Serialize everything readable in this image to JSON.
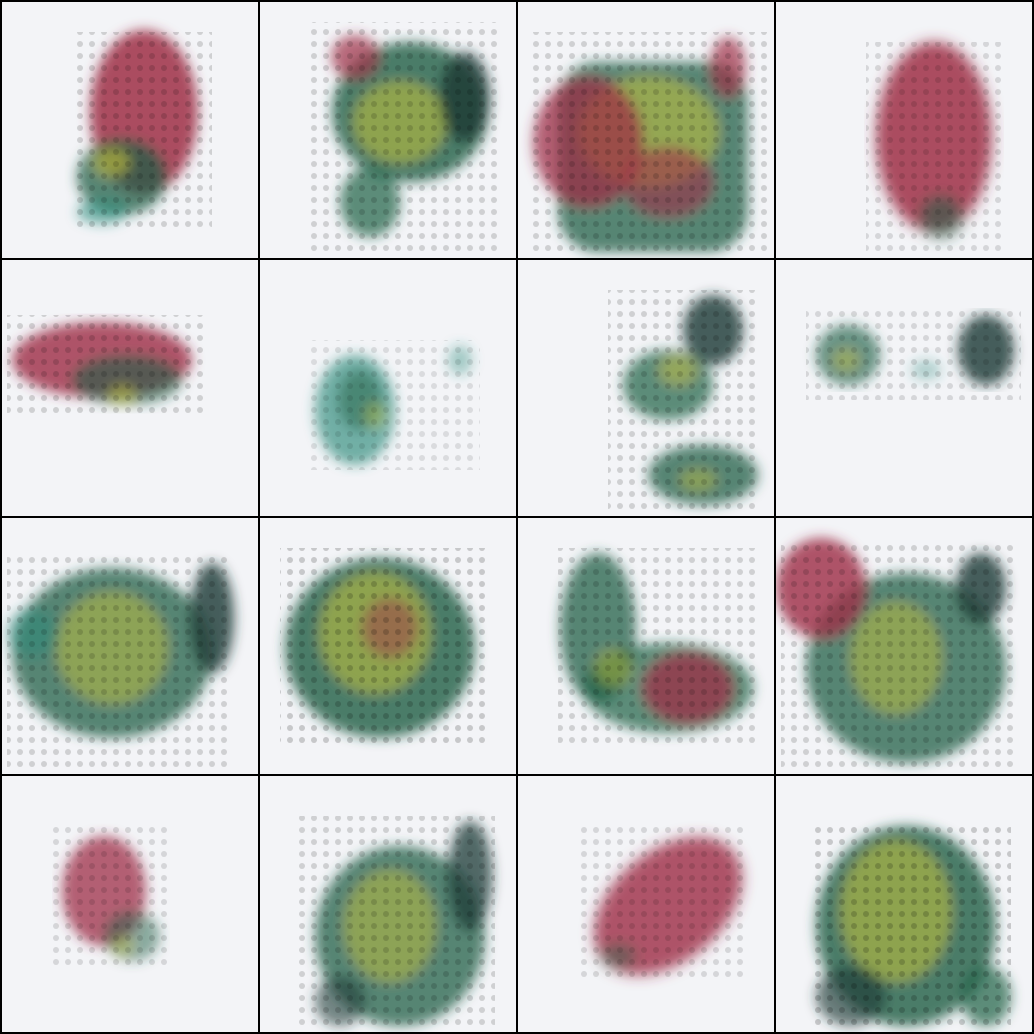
{
  "colors": {
    "border": "#000000",
    "background": "#f3f4f7",
    "red": "#9e2d46",
    "green": "#1f5f45",
    "teal": "#2a8a7a",
    "yellow": "#c8c23a",
    "dark": "#1d3a35"
  },
  "tiles": [
    {
      "id": 1,
      "dominant": "red-blob"
    },
    {
      "id": 2,
      "dominant": "green-yellow"
    },
    {
      "id": 3,
      "dominant": "red-green-yellow"
    },
    {
      "id": 4,
      "dominant": "red-blob"
    },
    {
      "id": 5,
      "dominant": "red-horizontal"
    },
    {
      "id": 6,
      "dominant": "sparse-teal"
    },
    {
      "id": 7,
      "dominant": "green-diagonal"
    },
    {
      "id": 8,
      "dominant": "sparse-green"
    },
    {
      "id": 9,
      "dominant": "green-yellow"
    },
    {
      "id": 10,
      "dominant": "green-yellow-dense"
    },
    {
      "id": 11,
      "dominant": "green-red"
    },
    {
      "id": 12,
      "dominant": "red-green"
    },
    {
      "id": 13,
      "dominant": "red-small"
    },
    {
      "id": 14,
      "dominant": "green-yellow"
    },
    {
      "id": 15,
      "dominant": "red-diagonal"
    },
    {
      "id": 16,
      "dominant": "green-yellow-dense"
    }
  ]
}
